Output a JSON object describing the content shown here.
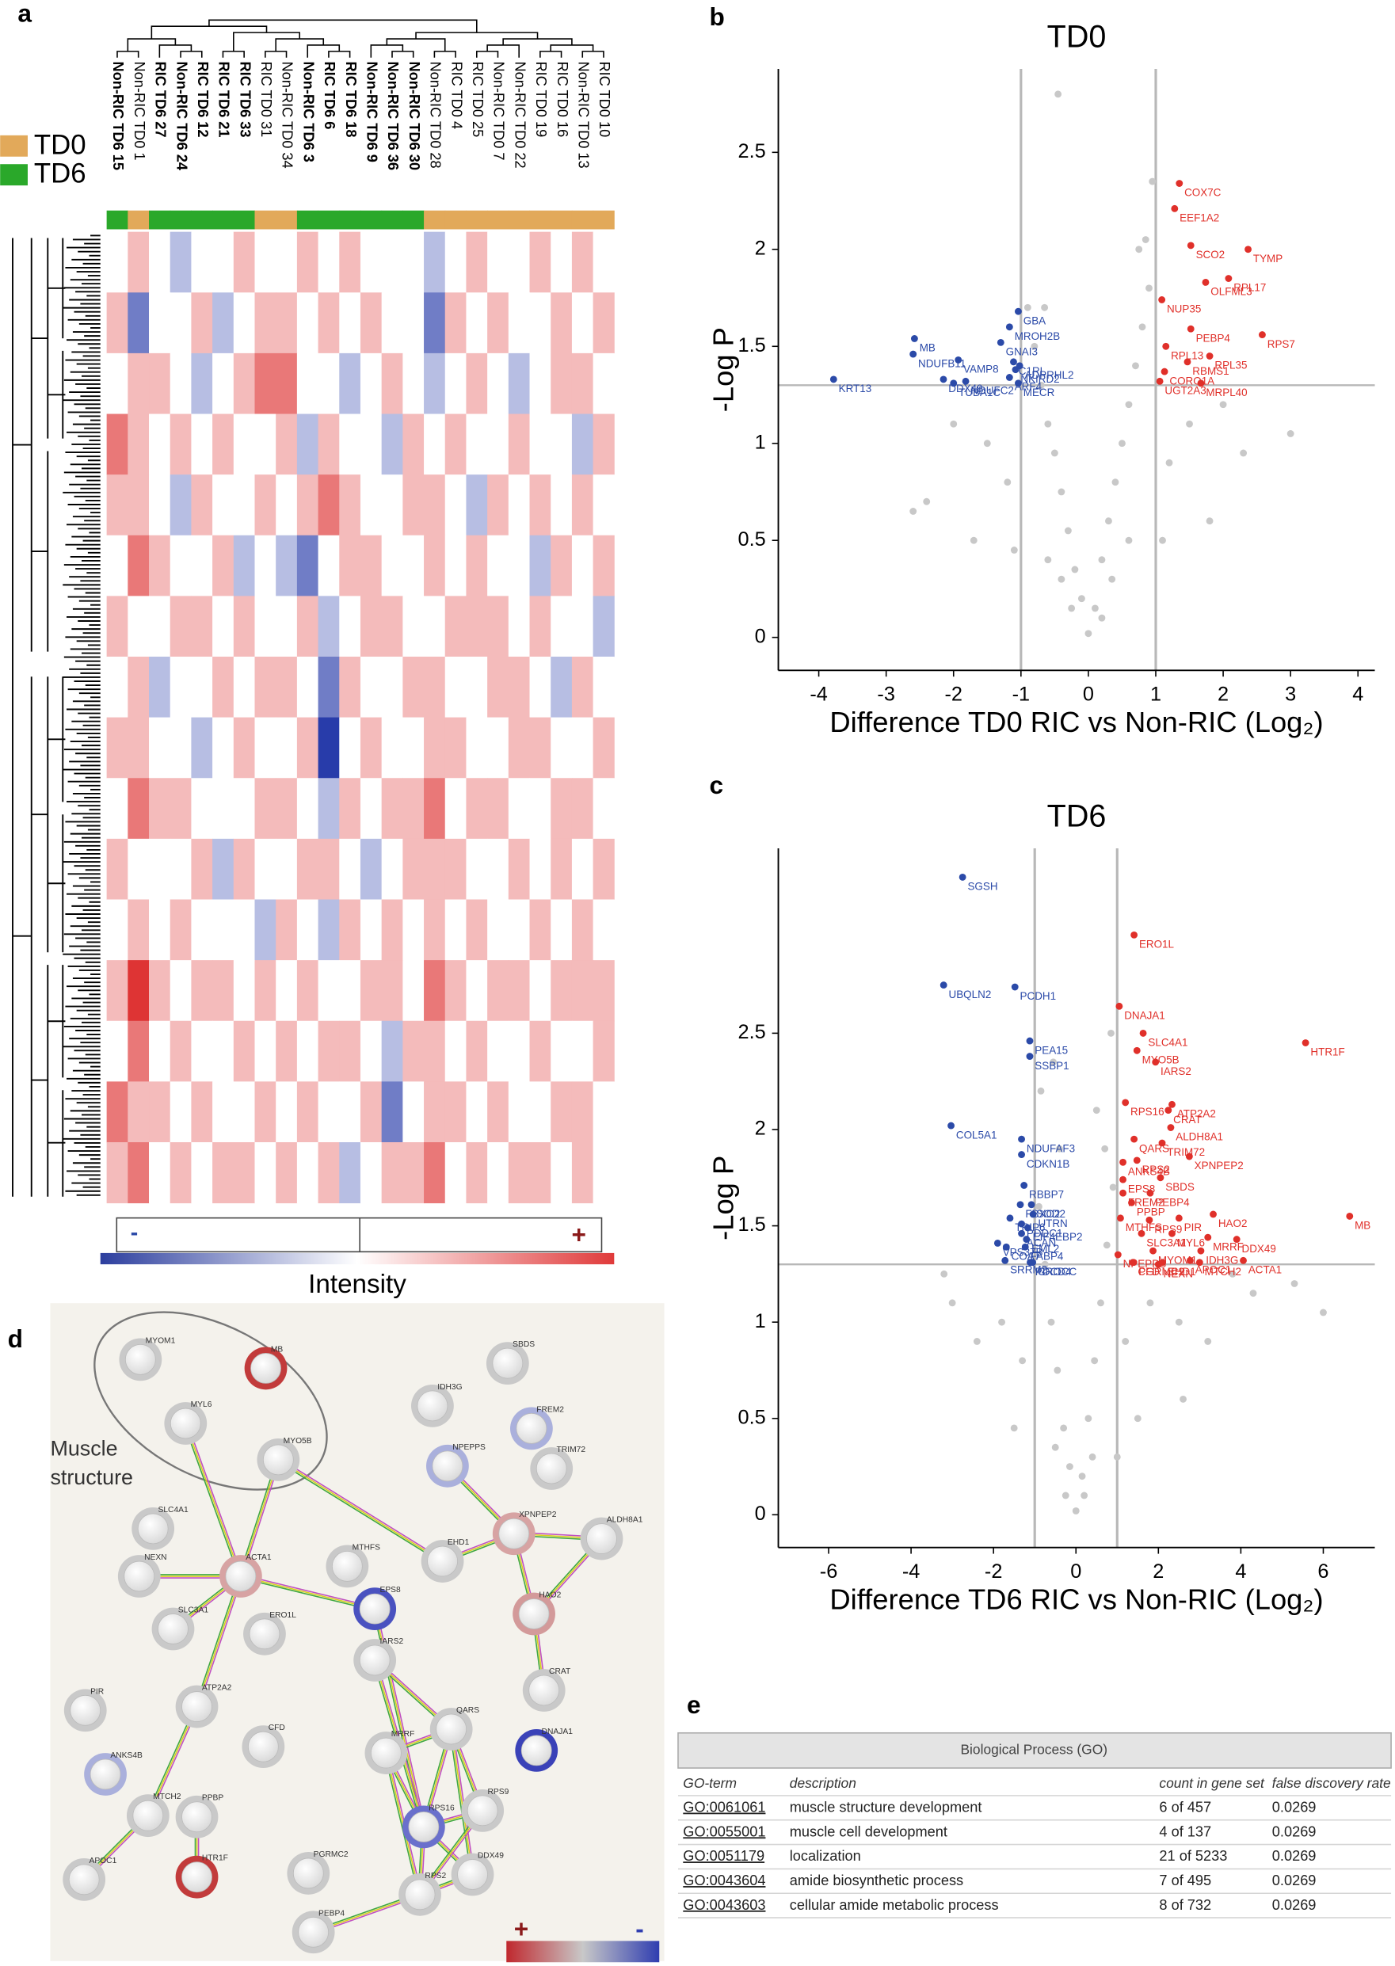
{
  "panel_labels": [
    "a",
    "b",
    "c",
    "d",
    "e"
  ],
  "heatmap": {
    "columns": [
      "Non-RIC TD6 15",
      "Non-RIC TD0 1",
      "RIC TD6 27",
      "Non-RIC TD6 24",
      "RIC TD6 12",
      "RIC TD6 21",
      "RIC TD6 33",
      "RIC TD0 31",
      "Non-RIC TD0 34",
      "Non-RIC TD6 3",
      "RIC TD6 6",
      "RIC TD6 18",
      "Non-RIC TD6 9",
      "Non-RIC TD6 36",
      "Non-RIC TD6 30",
      "Non-RIC TD0 28",
      "RIC TD0 4",
      "RIC TD0 25",
      "Non-RIC TD0 7",
      "Non-RIC TD0 22",
      "RIC TD0 19",
      "RIC TD0 16",
      "Non-RIC TD0 13",
      "RIC TD0 10"
    ],
    "groups": [
      "TD6",
      "TD0",
      "TD6",
      "TD6",
      "TD6",
      "TD6",
      "TD6",
      "TD0",
      "TD0",
      "TD6",
      "TD6",
      "TD6",
      "TD6",
      "TD6",
      "TD6",
      "TD0",
      "TD0",
      "TD0",
      "TD0",
      "TD0",
      "TD0",
      "TD0",
      "TD0",
      "TD0"
    ],
    "legend": [
      {
        "name": "TD0",
        "color": "#e2a95a"
      },
      {
        "name": "TD6",
        "color": "#2aa82a"
      }
    ],
    "colorbar": {
      "label": "Intensity",
      "low": "-",
      "high": "+"
    },
    "values": [
      [
        0,
        1,
        0,
        -1,
        0,
        0,
        1,
        0,
        0,
        1,
        0,
        1,
        0,
        0,
        0,
        -1,
        0,
        1,
        0,
        0,
        1,
        0,
        1,
        0
      ],
      [
        1,
        -2,
        0,
        0,
        1,
        -1,
        0,
        1,
        1,
        0,
        1,
        0,
        1,
        0,
        0,
        -2,
        1,
        0,
        1,
        0,
        0,
        1,
        0,
        1
      ],
      [
        0,
        1,
        1,
        0,
        -1,
        0,
        1,
        2,
        2,
        0,
        0,
        -1,
        0,
        1,
        0,
        -1,
        0,
        1,
        0,
        -1,
        0,
        1,
        1,
        0
      ],
      [
        2,
        1,
        0,
        1,
        0,
        1,
        0,
        0,
        1,
        -1,
        1,
        0,
        0,
        -1,
        1,
        0,
        1,
        0,
        0,
        1,
        0,
        0,
        -1,
        1
      ],
      [
        1,
        1,
        0,
        -1,
        1,
        0,
        0,
        1,
        0,
        1,
        2,
        1,
        0,
        0,
        1,
        1,
        0,
        -1,
        1,
        0,
        1,
        0,
        1,
        0
      ],
      [
        0,
        2,
        1,
        0,
        0,
        1,
        -1,
        0,
        -1,
        -2,
        0,
        1,
        1,
        0,
        0,
        1,
        0,
        1,
        0,
        0,
        -1,
        1,
        0,
        1
      ],
      [
        1,
        0,
        0,
        1,
        1,
        0,
        1,
        0,
        0,
        1,
        -1,
        0,
        1,
        1,
        0,
        0,
        1,
        1,
        1,
        0,
        1,
        0,
        0,
        -1
      ],
      [
        0,
        1,
        -1,
        0,
        0,
        1,
        0,
        1,
        1,
        0,
        -2,
        1,
        0,
        0,
        1,
        1,
        0,
        0,
        1,
        1,
        0,
        -1,
        1,
        0
      ],
      [
        1,
        1,
        0,
        0,
        -1,
        0,
        1,
        0,
        0,
        1,
        -3,
        0,
        1,
        0,
        0,
        1,
        1,
        0,
        0,
        1,
        1,
        0,
        0,
        1
      ],
      [
        0,
        2,
        1,
        1,
        0,
        0,
        0,
        1,
        1,
        0,
        -1,
        1,
        0,
        1,
        1,
        2,
        0,
        1,
        1,
        0,
        0,
        1,
        1,
        0
      ],
      [
        1,
        0,
        0,
        0,
        1,
        -1,
        1,
        0,
        0,
        1,
        1,
        0,
        -1,
        0,
        1,
        1,
        1,
        0,
        0,
        1,
        0,
        1,
        0,
        1
      ],
      [
        0,
        1,
        0,
        1,
        0,
        0,
        0,
        -1,
        1,
        0,
        -1,
        1,
        0,
        1,
        0,
        1,
        0,
        1,
        0,
        0,
        1,
        0,
        1,
        0
      ],
      [
        1,
        3,
        1,
        0,
        1,
        1,
        0,
        1,
        0,
        1,
        0,
        0,
        1,
        1,
        0,
        2,
        1,
        0,
        1,
        1,
        0,
        1,
        1,
        1
      ],
      [
        0,
        2,
        0,
        1,
        0,
        0,
        1,
        0,
        1,
        0,
        1,
        1,
        0,
        -1,
        1,
        1,
        0,
        1,
        0,
        0,
        1,
        0,
        0,
        1
      ],
      [
        2,
        1,
        1,
        0,
        1,
        0,
        0,
        1,
        0,
        1,
        0,
        0,
        1,
        -2,
        0,
        1,
        1,
        0,
        1,
        0,
        0,
        1,
        1,
        0
      ],
      [
        1,
        2,
        0,
        1,
        0,
        1,
        1,
        0,
        1,
        0,
        1,
        -1,
        0,
        1,
        1,
        2,
        0,
        1,
        0,
        1,
        1,
        0,
        1,
        0
      ]
    ]
  },
  "chart_data": [
    {
      "type": "scatter",
      "title": "TD0",
      "x_label": "Difference TD0 RIC vs Non-RIC (Log₂)",
      "y_label": "-Log P",
      "xlim": [
        -4.6,
        4.25
      ],
      "ylim": [
        -0.17,
        2.93
      ],
      "xticks": [
        -4,
        -3,
        -2,
        -1,
        0,
        1,
        2,
        3,
        4
      ],
      "yticks": [
        0,
        0.5,
        1,
        1.5,
        2,
        2.5
      ],
      "x_thresholds": [
        -1,
        1
      ],
      "y_threshold": 1.3,
      "series": [
        {
          "color": "#c8c8c8",
          "x": [
            0,
            0.1,
            -0.1,
            0.2,
            -0.2,
            0.3,
            -0.3,
            0.4,
            -0.4,
            0.5,
            -0.5,
            0.6,
            -0.6,
            0.7,
            -0.7,
            0.8,
            -0.8,
            0.9,
            -0.9,
            0.85,
            0.95,
            -0.65,
            -0.45,
            0.2,
            -0.25,
            0.35,
            -0.4,
            1.2,
            -1.2,
            1.5,
            -1.5,
            2.0,
            -2.0,
            1.8,
            -1.7,
            2.3,
            -2.4,
            3.0,
            -2.6,
            0.6,
            -0.6,
            1.1,
            -1.1,
            0.75
          ],
          "values": [
            0.02,
            0.15,
            0.2,
            0.4,
            0.35,
            0.6,
            0.55,
            0.8,
            0.75,
            1.0,
            0.95,
            1.2,
            1.1,
            1.4,
            1.3,
            1.6,
            1.5,
            1.8,
            1.7,
            2.05,
            2.35,
            1.7,
            2.8,
            0.1,
            0.15,
            0.3,
            0.3,
            0.9,
            0.8,
            1.1,
            1.0,
            1.2,
            1.1,
            0.6,
            0.5,
            0.95,
            0.7,
            1.05,
            0.65,
            0.5,
            0.4,
            0.5,
            0.45,
            2.0
          ]
        },
        {
          "color": "#e0302a",
          "labels": [
            "COX7C",
            "EEF1A2",
            "SCO2",
            "TYMP",
            "RPL17",
            "OLFML3",
            "NUP35",
            "PEBP4",
            "RPS7",
            "RPL13",
            "RPL35",
            "RBMS1",
            "CORO1A",
            "MRPL40",
            "UGT2A3"
          ],
          "x": [
            1.35,
            1.28,
            1.52,
            2.37,
            2.08,
            1.74,
            1.09,
            1.52,
            2.58,
            1.15,
            1.8,
            1.47,
            1.13,
            1.67,
            1.06
          ],
          "values": [
            2.34,
            2.21,
            2.02,
            2.0,
            1.85,
            1.83,
            1.74,
            1.59,
            1.56,
            1.5,
            1.45,
            1.42,
            1.37,
            1.31,
            1.32
          ]
        },
        {
          "color": "#2b4aa8",
          "labels": [
            "GBA",
            "MROH2B",
            "GNAI3",
            "MB",
            "C1RL",
            "VAMP8",
            "NDUFB11",
            "NKIRD2",
            "ADPRHL2",
            "DDX49",
            "NDUFC2",
            "ARF4",
            "TUBA1C",
            "MECR",
            "KRT13"
          ],
          "x": [
            -1.04,
            -1.17,
            -1.3,
            -2.58,
            -1.11,
            -1.93,
            -2.6,
            -1.08,
            -1.02,
            -2.15,
            -1.82,
            -1.17,
            -2.0,
            -1.04,
            -3.78
          ],
          "values": [
            1.68,
            1.6,
            1.52,
            1.54,
            1.42,
            1.43,
            1.46,
            1.38,
            1.4,
            1.33,
            1.32,
            1.34,
            1.31,
            1.31,
            1.33
          ]
        }
      ]
    },
    {
      "type": "scatter",
      "title": "TD6",
      "x_label": "Difference TD6 RIC vs Non-RIC (Log₂)",
      "y_label": "-Log P",
      "xlim": [
        -7.22,
        7.25
      ],
      "ylim": [
        -0.17,
        3.46
      ],
      "xticks": [
        -6,
        -4,
        -2,
        0,
        2,
        4,
        6
      ],
      "yticks": [
        0,
        0.5,
        1,
        1.5,
        2,
        2.5
      ],
      "x_thresholds": [
        -1,
        1
      ],
      "y_threshold": 1.3,
      "series": [
        {
          "color": "#c8c8c8",
          "x": [
            0,
            0.15,
            -0.15,
            0.3,
            -0.3,
            0.45,
            -0.45,
            0.6,
            -0.6,
            0.75,
            -0.75,
            0.9,
            -0.9,
            0.5,
            -0.4,
            0.7,
            -0.55,
            0.2,
            -0.25,
            1.2,
            -1.3,
            1.8,
            -1.8,
            2.5,
            -2.4,
            3.2,
            -3.0,
            4.3,
            5.3,
            6.0,
            -3.2,
            1.5,
            -1.5,
            2.6,
            0.4,
            -0.5,
            3.8,
            0.85,
            -0.85,
            1.0
          ],
          "values": [
            0.02,
            0.2,
            0.25,
            0.5,
            0.45,
            0.8,
            0.75,
            1.1,
            1.0,
            1.4,
            1.3,
            1.7,
            1.6,
            2.1,
            1.9,
            1.9,
            2.35,
            0.1,
            0.1,
            0.9,
            0.8,
            1.1,
            1.0,
            1.0,
            0.9,
            0.9,
            1.1,
            1.15,
            1.2,
            1.05,
            1.25,
            0.5,
            0.45,
            0.6,
            0.3,
            0.35,
            1.25,
            2.5,
            2.2,
            0.3
          ]
        },
        {
          "color": "#e0302a",
          "labels": [
            "ERO1L",
            "DNAJA1",
            "SLC4A1",
            "MYO5B",
            "HTR1F",
            "IARS2",
            "ATP2A2",
            "RPS16",
            "CRAT",
            "ALDH8A1",
            "TRIM72",
            "QARS",
            "XPNPEP2",
            "ANKS4B",
            "RPS2",
            "EPS8",
            "SBDS",
            "FREM2",
            "PEBP4",
            "PPBP",
            "PIR",
            "HAO2",
            "MB",
            "RPS9",
            "MTHFS",
            "SLC3A1",
            "MYL6",
            "MRRF",
            "DDX49",
            "IDH3G",
            "MYOM1",
            "NPEPPS",
            "CFD",
            "NEXN",
            "APOC1",
            "ACTA1",
            "PGRMC2",
            "MTCH2",
            "EHD1"
          ],
          "x": [
            1.41,
            1.05,
            1.63,
            1.48,
            5.57,
            1.93,
            2.33,
            1.2,
            2.24,
            2.3,
            2.09,
            1.41,
            2.75,
            1.14,
            1.48,
            1.14,
            2.05,
            1.14,
            1.8,
            1.35,
            2.5,
            3.33,
            6.64,
            1.78,
            1.08,
            1.59,
            2.33,
            3.2,
            3.9,
            3.03,
            1.87,
            1.02,
            1.38,
            2.0,
            2.77,
            4.06,
            1.4,
            3.0,
            2.1
          ],
          "values": [
            3.01,
            2.64,
            2.5,
            2.41,
            2.45,
            2.35,
            2.13,
            2.14,
            2.1,
            2.01,
            1.93,
            1.95,
            1.86,
            1.83,
            1.84,
            1.74,
            1.75,
            1.67,
            1.67,
            1.62,
            1.54,
            1.56,
            1.55,
            1.53,
            1.54,
            1.46,
            1.46,
            1.44,
            1.43,
            1.37,
            1.37,
            1.35,
            1.31,
            1.3,
            1.32,
            1.32,
            1.31,
            1.31,
            1.31
          ]
        },
        {
          "color": "#2b4aa8",
          "labels": [
            "SGSH",
            "UBQLN2",
            "PCDH1",
            "PEA15",
            "SSBP1",
            "COL5A1",
            "NDUFAF3",
            "CDKN1B",
            "RBBP7",
            "FBXO2",
            "SOD2",
            "UTRN",
            "TRIP6",
            "PDDC1",
            "EIF4EBP2",
            "ACAN",
            "EML2",
            "VPS37B",
            "COA7",
            "FABP4",
            "SRRM2",
            "PDCD4",
            "CROCC"
          ],
          "x": [
            -2.75,
            -3.21,
            -1.48,
            -1.12,
            -1.12,
            -3.03,
            -1.32,
            -1.32,
            -1.26,
            -1.35,
            -1.08,
            -1.04,
            -1.6,
            -1.32,
            -1.17,
            -1.32,
            -1.2,
            -1.9,
            -1.69,
            -1.23,
            -1.72,
            -1.11,
            -1.05
          ],
          "values": [
            3.31,
            2.75,
            2.74,
            2.46,
            2.38,
            2.02,
            1.95,
            1.87,
            1.71,
            1.61,
            1.61,
            1.56,
            1.54,
            1.51,
            1.49,
            1.46,
            1.43,
            1.41,
            1.39,
            1.39,
            1.32,
            1.31,
            1.31
          ]
        }
      ]
    }
  ],
  "network": {
    "annotation": [
      "Muscle",
      "structure"
    ],
    "legend": {
      "high": "+",
      "low": "-"
    },
    "nodes": [
      {
        "label": "MYOM1",
        "color": "#c9c9c9"
      },
      {
        "label": "MB",
        "color": "#c23b3b"
      },
      {
        "label": "MYL6",
        "color": "#c9c9c9"
      },
      {
        "label": "MYO5B",
        "color": "#c9c9c9"
      },
      {
        "label": "SBDS",
        "color": "#c9c9c9"
      },
      {
        "label": "IDH3G",
        "color": "#c9c9c9"
      },
      {
        "label": "FREM2",
        "color": "#aab0dc"
      },
      {
        "label": "NPEPPS",
        "color": "#aab0dc"
      },
      {
        "label": "TRIM72",
        "color": "#c9c9c9"
      },
      {
        "label": "SLC4A1",
        "color": "#c9c9c9"
      },
      {
        "label": "XPNPEP2",
        "color": "#d7a3a3"
      },
      {
        "label": "ALDH8A1",
        "color": "#c9c9c9"
      },
      {
        "label": "MTHFS",
        "color": "#c9c9c9"
      },
      {
        "label": "EHD1",
        "color": "#c9c9c9"
      },
      {
        "label": "NEXN",
        "color": "#c9c9c9"
      },
      {
        "label": "ACTA1",
        "color": "#d7a3a3"
      },
      {
        "label": "EPS8",
        "color": "#4a52c0"
      },
      {
        "label": "SLC3A1",
        "color": "#c9c9c9"
      },
      {
        "label": "HAO2",
        "color": "#d39a9a"
      },
      {
        "label": "ERO1L",
        "color": "#c9c9c9"
      },
      {
        "label": "IARS2",
        "color": "#c9c9c9"
      },
      {
        "label": "CRAT",
        "color": "#c9c9c9"
      },
      {
        "label": "ATP2A2",
        "color": "#c9c9c9"
      },
      {
        "label": "QARS",
        "color": "#c9c9c9"
      },
      {
        "label": "DNAJA1",
        "color": "#3a42b8"
      },
      {
        "label": "PIR",
        "color": "#c9c9c9"
      },
      {
        "label": "CFD",
        "color": "#c9c9c9"
      },
      {
        "label": "MRRF",
        "color": "#c9c9c9"
      },
      {
        "label": "ANKS4B",
        "color": "#aab0dc"
      },
      {
        "label": "MTCH2",
        "color": "#c9c9c9"
      },
      {
        "label": "PPBP",
        "color": "#c9c9c9"
      },
      {
        "label": "RPS16",
        "color": "#6a70cc"
      },
      {
        "label": "RPS9",
        "color": "#c9c9c9"
      },
      {
        "label": "DDX49",
        "color": "#c9c9c9"
      },
      {
        "label": "APOC1",
        "color": "#c9c9c9"
      },
      {
        "label": "HTR1F",
        "color": "#c23b3b"
      },
      {
        "label": "PGRMC2",
        "color": "#c9c9c9"
      },
      {
        "label": "RPS2",
        "color": "#c9c9c9"
      },
      {
        "label": "PEBP4",
        "color": "#c9c9c9"
      }
    ]
  },
  "table": {
    "title": "Biological Process (GO)",
    "columns": [
      "GO-term",
      "description",
      "count in gene set",
      "false discovery rate"
    ],
    "rows": [
      [
        "GO:0061061",
        "muscle structure development",
        "6 of 457",
        "0.0269"
      ],
      [
        "GO:0055001",
        "muscle cell development",
        "4 of 137",
        "0.0269"
      ],
      [
        "GO:0051179",
        "localization",
        "21 of 5233",
        "0.0269"
      ],
      [
        "GO:0043604",
        "amide biosynthetic process",
        "7 of 495",
        "0.0269"
      ],
      [
        "GO:0043603",
        "cellular amide metabolic process",
        "8 of 732",
        "0.0269"
      ]
    ]
  }
}
